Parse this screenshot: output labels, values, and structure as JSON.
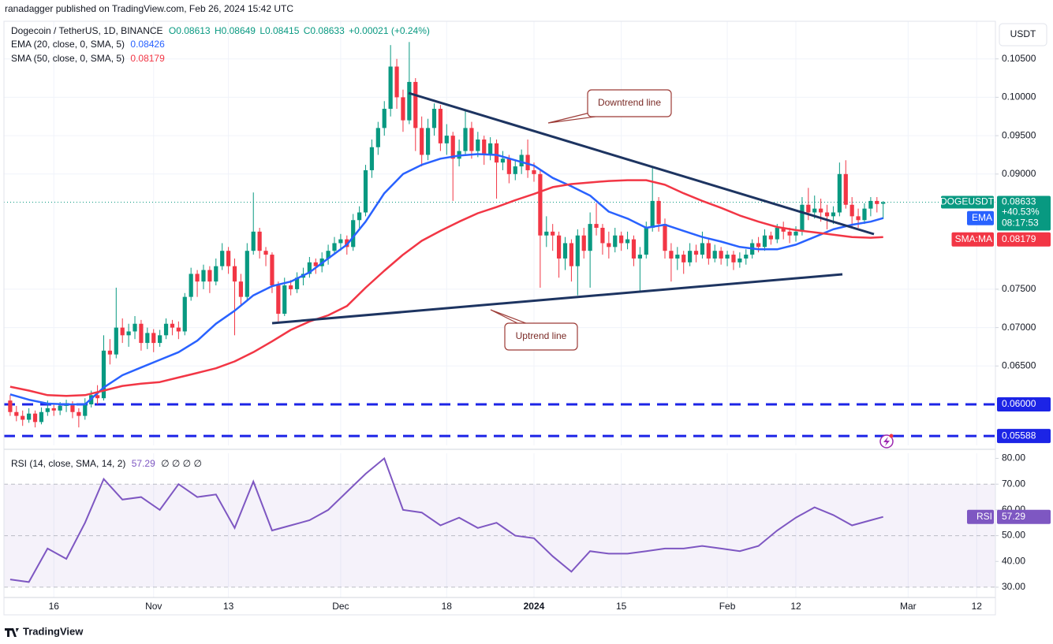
{
  "header": {
    "publisher": "ranadagger published on TradingView.com, Feb 26, 2024 15:42 UTC",
    "brand": "TradingView"
  },
  "chart_data": {
    "type": "candlestick",
    "symbol": "Dogecoin / TetherUS, 1D, BINANCE",
    "ohlc_legend": [
      "O0.08613",
      "H0.08649",
      "L0.08415",
      "C0.08633",
      "+0.00021 (+0.24%)"
    ],
    "currency": "USDT",
    "up_color": "#089981",
    "down_color": "#f23645",
    "xlim": [
      -8,
      151
    ],
    "xticks": [
      {
        "value": 0,
        "label": "16"
      },
      {
        "value": 16,
        "label": "Nov"
      },
      {
        "value": 28,
        "label": "13"
      },
      {
        "value": 46,
        "label": "Dec"
      },
      {
        "value": 63,
        "label": "18"
      },
      {
        "value": 77,
        "label": "2024"
      },
      {
        "value": 91,
        "label": "15"
      },
      {
        "value": 108,
        "label": "Feb"
      },
      {
        "value": 119,
        "label": "12"
      },
      {
        "value": 137,
        "label": "Mar"
      },
      {
        "value": 148,
        "label": "12"
      }
    ],
    "ylim": [
      0.05466,
      0.1099
    ],
    "yticks": [
      {
        "value": 0.105,
        "label": "0.10500"
      },
      {
        "value": 0.1,
        "label": "0.10000"
      },
      {
        "value": 0.095,
        "label": "0.09500"
      },
      {
        "value": 0.09,
        "label": "0.09000"
      },
      {
        "value": 0.075,
        "label": "0.07500"
      },
      {
        "value": 0.07,
        "label": "0.07000"
      },
      {
        "value": 0.065,
        "label": "0.06500"
      }
    ],
    "grid": true,
    "candles": [
      [
        -7,
        0.0605,
        0.0612,
        0.0585,
        0.059
      ],
      [
        -6,
        0.059,
        0.0598,
        0.0578,
        0.0585
      ],
      [
        -5,
        0.0585,
        0.0592,
        0.0572,
        0.058
      ],
      [
        -4,
        0.058,
        0.0595,
        0.0576,
        0.0588
      ],
      [
        -3,
        0.0588,
        0.0592,
        0.057,
        0.0577
      ],
      [
        -2,
        0.0577,
        0.0596,
        0.0574,
        0.059
      ],
      [
        -1,
        0.059,
        0.0605,
        0.0585,
        0.0595
      ],
      [
        0,
        0.0595,
        0.06,
        0.0585,
        0.0592
      ],
      [
        1,
        0.0592,
        0.0603,
        0.0586,
        0.0598
      ],
      [
        2,
        0.0598,
        0.0606,
        0.059,
        0.06
      ],
      [
        3,
        0.06,
        0.0604,
        0.0582,
        0.059
      ],
      [
        4,
        0.059,
        0.0595,
        0.057,
        0.0585
      ],
      [
        5,
        0.0585,
        0.0608,
        0.058,
        0.06
      ],
      [
        6,
        0.06,
        0.0618,
        0.0596,
        0.0612
      ],
      [
        7,
        0.0612,
        0.0625,
        0.06,
        0.0608
      ],
      [
        8,
        0.0608,
        0.069,
        0.0605,
        0.067
      ],
      [
        9,
        0.067,
        0.0685,
        0.0652,
        0.0665
      ],
      [
        10,
        0.0665,
        0.0752,
        0.066,
        0.07
      ],
      [
        11,
        0.07,
        0.0712,
        0.068,
        0.069
      ],
      [
        12,
        0.069,
        0.0705,
        0.0675,
        0.0695
      ],
      [
        13,
        0.0695,
        0.0715,
        0.0685,
        0.0705
      ],
      [
        14,
        0.0705,
        0.071,
        0.067,
        0.068
      ],
      [
        15,
        0.068,
        0.07,
        0.0672,
        0.0693
      ],
      [
        16,
        0.0693,
        0.0698,
        0.0668,
        0.068
      ],
      [
        17,
        0.068,
        0.0697,
        0.0675,
        0.069
      ],
      [
        18,
        0.069,
        0.0712,
        0.0685,
        0.0705
      ],
      [
        19,
        0.0705,
        0.071,
        0.069,
        0.07
      ],
      [
        20,
        0.07,
        0.0708,
        0.0685,
        0.0695
      ],
      [
        21,
        0.0695,
        0.0745,
        0.069,
        0.074
      ],
      [
        22,
        0.074,
        0.0778,
        0.0735,
        0.077
      ],
      [
        23,
        0.077,
        0.0775,
        0.074,
        0.076
      ],
      [
        24,
        0.076,
        0.0782,
        0.075,
        0.0775
      ],
      [
        25,
        0.0775,
        0.078,
        0.0745,
        0.076
      ],
      [
        26,
        0.076,
        0.079,
        0.0755,
        0.078
      ],
      [
        27,
        0.078,
        0.081,
        0.0775,
        0.08
      ],
      [
        28,
        0.08,
        0.0805,
        0.077,
        0.078
      ],
      [
        29,
        0.078,
        0.079,
        0.069,
        0.076
      ],
      [
        30,
        0.076,
        0.077,
        0.073,
        0.074
      ],
      [
        31,
        0.074,
        0.081,
        0.0735,
        0.08
      ],
      [
        32,
        0.08,
        0.0876,
        0.0795,
        0.0825
      ],
      [
        33,
        0.0825,
        0.083,
        0.079,
        0.08
      ],
      [
        34,
        0.08,
        0.0805,
        0.078,
        0.0795
      ],
      [
        35,
        0.0795,
        0.0798,
        0.0745,
        0.0755
      ],
      [
        36,
        0.0755,
        0.076,
        0.0708,
        0.0718
      ],
      [
        37,
        0.0718,
        0.0765,
        0.0715,
        0.0755
      ],
      [
        38,
        0.0755,
        0.0762,
        0.0742,
        0.075
      ],
      [
        39,
        0.075,
        0.0772,
        0.0745,
        0.0765
      ],
      [
        40,
        0.0765,
        0.0778,
        0.0755,
        0.077
      ],
      [
        41,
        0.077,
        0.0792,
        0.0765,
        0.0785
      ],
      [
        42,
        0.0785,
        0.079,
        0.077,
        0.078
      ],
      [
        43,
        0.078,
        0.0798,
        0.0772,
        0.079
      ],
      [
        44,
        0.079,
        0.0808,
        0.0782,
        0.08
      ],
      [
        45,
        0.08,
        0.0818,
        0.0795,
        0.081
      ],
      [
        46,
        0.081,
        0.0822,
        0.08,
        0.0815
      ],
      [
        47,
        0.0815,
        0.082,
        0.0795,
        0.0805
      ],
      [
        48,
        0.0805,
        0.0848,
        0.08,
        0.084
      ],
      [
        49,
        0.084,
        0.0858,
        0.083,
        0.085
      ],
      [
        50,
        0.085,
        0.0912,
        0.0845,
        0.0905
      ],
      [
        51,
        0.0905,
        0.0945,
        0.0895,
        0.0935
      ],
      [
        52,
        0.0935,
        0.0968,
        0.0925,
        0.096
      ],
      [
        53,
        0.096,
        0.0995,
        0.095,
        0.0985
      ],
      [
        54,
        0.0985,
        0.1068,
        0.0975,
        0.104
      ],
      [
        55,
        0.104,
        0.105,
        0.0985,
        0.1
      ],
      [
        56,
        0.1,
        0.101,
        0.0955,
        0.097
      ],
      [
        57,
        0.097,
        0.1072,
        0.0965,
        0.102
      ],
      [
        58,
        0.102,
        0.1025,
        0.093,
        0.096
      ],
      [
        59,
        0.096,
        0.0975,
        0.091,
        0.0925
      ],
      [
        60,
        0.0925,
        0.0972,
        0.0918,
        0.096
      ],
      [
        61,
        0.096,
        0.0992,
        0.095,
        0.0985
      ],
      [
        62,
        0.0985,
        0.099,
        0.093,
        0.094
      ],
      [
        63,
        0.094,
        0.0965,
        0.0925,
        0.095
      ],
      [
        64,
        0.095,
        0.0955,
        0.0865,
        0.092
      ],
      [
        65,
        0.092,
        0.0945,
        0.091,
        0.093
      ],
      [
        66,
        0.093,
        0.0982,
        0.0925,
        0.096
      ],
      [
        67,
        0.096,
        0.0968,
        0.092,
        0.093
      ],
      [
        68,
        0.093,
        0.0955,
        0.0922,
        0.0945
      ],
      [
        69,
        0.0945,
        0.095,
        0.0912,
        0.0925
      ],
      [
        70,
        0.0925,
        0.0948,
        0.0918,
        0.094
      ],
      [
        71,
        0.094,
        0.0945,
        0.0868,
        0.0915
      ],
      [
        72,
        0.0915,
        0.093,
        0.0905,
        0.092
      ],
      [
        73,
        0.092,
        0.0925,
        0.0888,
        0.09
      ],
      [
        74,
        0.09,
        0.0918,
        0.0892,
        0.091
      ],
      [
        75,
        0.091,
        0.0932,
        0.09,
        0.0925
      ],
      [
        76,
        0.0925,
        0.0945,
        0.0895,
        0.0905
      ],
      [
        77,
        0.0905,
        0.0915,
        0.089,
        0.09
      ],
      [
        78,
        0.09,
        0.0905,
        0.0752,
        0.082
      ],
      [
        79,
        0.082,
        0.0845,
        0.0805,
        0.0825
      ],
      [
        80,
        0.0825,
        0.0835,
        0.08,
        0.082
      ],
      [
        81,
        0.082,
        0.0825,
        0.0765,
        0.079
      ],
      [
        82,
        0.079,
        0.0818,
        0.0775,
        0.081
      ],
      [
        83,
        0.081,
        0.0815,
        0.076,
        0.078
      ],
      [
        84,
        0.078,
        0.0828,
        0.0742,
        0.082
      ],
      [
        85,
        0.082,
        0.083,
        0.079,
        0.08
      ],
      [
        86,
        0.08,
        0.085,
        0.0752,
        0.0835
      ],
      [
        87,
        0.0835,
        0.0862,
        0.082,
        0.083
      ],
      [
        88,
        0.083,
        0.0835,
        0.0795,
        0.081
      ],
      [
        89,
        0.081,
        0.0825,
        0.079,
        0.0805
      ],
      [
        90,
        0.0805,
        0.083,
        0.0798,
        0.082
      ],
      [
        91,
        0.082,
        0.0825,
        0.08,
        0.081
      ],
      [
        92,
        0.081,
        0.0825,
        0.0802,
        0.0815
      ],
      [
        93,
        0.0815,
        0.082,
        0.078,
        0.079
      ],
      [
        94,
        0.079,
        0.0805,
        0.0748,
        0.0795
      ],
      [
        95,
        0.0795,
        0.0838,
        0.079,
        0.083
      ],
      [
        96,
        0.083,
        0.0908,
        0.0825,
        0.0865
      ],
      [
        97,
        0.0865,
        0.087,
        0.0825,
        0.0835
      ],
      [
        98,
        0.0835,
        0.0842,
        0.079,
        0.08
      ],
      [
        99,
        0.08,
        0.081,
        0.076,
        0.079
      ],
      [
        100,
        0.079,
        0.0805,
        0.0775,
        0.0795
      ],
      [
        101,
        0.0795,
        0.08,
        0.077,
        0.0785
      ],
      [
        102,
        0.0785,
        0.081,
        0.078,
        0.08
      ],
      [
        103,
        0.08,
        0.0808,
        0.0785,
        0.0795
      ],
      [
        104,
        0.0795,
        0.0825,
        0.079,
        0.081
      ],
      [
        105,
        0.081,
        0.0815,
        0.0782,
        0.079
      ],
      [
        106,
        0.079,
        0.0808,
        0.0785,
        0.08
      ],
      [
        107,
        0.08,
        0.0805,
        0.0782,
        0.079
      ],
      [
        108,
        0.079,
        0.08,
        0.078,
        0.0795
      ],
      [
        109,
        0.0795,
        0.08,
        0.0775,
        0.0785
      ],
      [
        110,
        0.0785,
        0.0798,
        0.0778,
        0.079
      ],
      [
        111,
        0.079,
        0.0802,
        0.0782,
        0.0795
      ],
      [
        112,
        0.0795,
        0.0815,
        0.079,
        0.081
      ],
      [
        113,
        0.081,
        0.0818,
        0.0798,
        0.0805
      ],
      [
        114,
        0.0805,
        0.0828,
        0.08,
        0.082
      ],
      [
        115,
        0.082,
        0.0825,
        0.0808,
        0.0815
      ],
      [
        116,
        0.0815,
        0.0835,
        0.081,
        0.083
      ],
      [
        117,
        0.083,
        0.0838,
        0.0815,
        0.0825
      ],
      [
        118,
        0.0825,
        0.083,
        0.081,
        0.082
      ],
      [
        119,
        0.082,
        0.0832,
        0.0812,
        0.0825
      ],
      [
        120,
        0.0825,
        0.087,
        0.082,
        0.086
      ],
      [
        121,
        0.086,
        0.0882,
        0.084,
        0.085
      ],
      [
        122,
        0.085,
        0.0872,
        0.0842,
        0.0855
      ],
      [
        123,
        0.0855,
        0.0868,
        0.0838,
        0.085
      ],
      [
        124,
        0.085,
        0.086,
        0.0828,
        0.0845
      ],
      [
        125,
        0.0845,
        0.0858,
        0.0835,
        0.085
      ],
      [
        126,
        0.085,
        0.0915,
        0.0845,
        0.09
      ],
      [
        127,
        0.09,
        0.0918,
        0.0855,
        0.086
      ],
      [
        128,
        0.086,
        0.087,
        0.083,
        0.0845
      ],
      [
        129,
        0.0845,
        0.0855,
        0.083,
        0.084
      ],
      [
        130,
        0.084,
        0.0862,
        0.0835,
        0.0855
      ],
      [
        131,
        0.0855,
        0.087,
        0.0845,
        0.0865
      ],
      [
        132,
        0.0865,
        0.087,
        0.085,
        0.0861
      ],
      [
        133,
        0.08613,
        0.08649,
        0.08415,
        0.08633
      ]
    ],
    "lines": {
      "x": [
        -7,
        -4,
        -1,
        2,
        5,
        8,
        11,
        14,
        17,
        20,
        23,
        26,
        29,
        32,
        35,
        38,
        41,
        44,
        47,
        50,
        53,
        56,
        59,
        62,
        65,
        68,
        71,
        74,
        77,
        80,
        83,
        86,
        89,
        92,
        95,
        98,
        101,
        104,
        107,
        110,
        113,
        116,
        119,
        122,
        125,
        128,
        131,
        133
      ],
      "series": [
        {
          "name": "EMA (20, close, 0, SMA, 5)",
          "tag": "EMA",
          "color": "#2962ff",
          "last": 0.08426,
          "values": [
            0.0613,
            0.0606,
            0.0601,
            0.06,
            0.06,
            0.0622,
            0.0638,
            0.0648,
            0.0658,
            0.0668,
            0.0683,
            0.0705,
            0.0722,
            0.0742,
            0.0754,
            0.076,
            0.0772,
            0.079,
            0.0808,
            0.0838,
            0.0875,
            0.09,
            0.0912,
            0.092,
            0.0924,
            0.0926,
            0.0925,
            0.0918,
            0.0911,
            0.0895,
            0.0884,
            0.0872,
            0.0851,
            0.0842,
            0.083,
            0.0834,
            0.0826,
            0.0818,
            0.0812,
            0.0805,
            0.0802,
            0.0802,
            0.0808,
            0.0818,
            0.0828,
            0.0834,
            0.0838,
            0.08426
          ]
        },
        {
          "name": "SMA (50, close, 0, SMA, 5)",
          "tag": "SMA:MA",
          "color": "#f23645",
          "last": 0.08179,
          "values": [
            0.0623,
            0.0618,
            0.0612,
            0.0611,
            0.0612,
            0.0618,
            0.0624,
            0.0627,
            0.0629,
            0.0635,
            0.0641,
            0.0647,
            0.0656,
            0.0668,
            0.0682,
            0.0697,
            0.0708,
            0.0716,
            0.0728,
            0.0752,
            0.0774,
            0.0795,
            0.0813,
            0.0826,
            0.0838,
            0.0849,
            0.0857,
            0.0866,
            0.0874,
            0.0883,
            0.0887,
            0.0889,
            0.0891,
            0.0892,
            0.0892,
            0.0886,
            0.0875,
            0.0865,
            0.0856,
            0.0846,
            0.0838,
            0.0831,
            0.0827,
            0.0824,
            0.0821,
            0.0818,
            0.0817,
            0.08179
          ]
        }
      ]
    },
    "last_price": {
      "tag": "DOGEUSDT",
      "value": 0.08633,
      "change": "+40.53%",
      "countdown": "08:17:53"
    },
    "levels": [
      {
        "value": 0.06,
        "label": "0.06000"
      },
      {
        "value": 0.05588,
        "label": "0.05588"
      }
    ],
    "level_color": "#1c24e6",
    "annotations": [
      "Downtrend line",
      "Uptrend line"
    ],
    "rsi": {
      "name": "RSI (14, close, SMA, 14, 2)",
      "tag": "RSI",
      "last": 57.29,
      "extra": "∅ ∅ ∅ ∅",
      "color": "#7e57c2",
      "ylim": [
        26,
        82
      ],
      "yticks": [
        {
          "value": 80,
          "label": "80.00"
        },
        {
          "value": 70,
          "label": "70.00"
        },
        {
          "value": 60,
          "label": "60.00"
        },
        {
          "value": 50,
          "label": "50.00"
        },
        {
          "value": 40,
          "label": "40.00"
        },
        {
          "value": 30,
          "label": "30.00"
        }
      ],
      "band": [
        30,
        70
      ],
      "middle": 50,
      "values": [
        33,
        32,
        45,
        41,
        55,
        72,
        64,
        65,
        60,
        70,
        65,
        66,
        53,
        71,
        52,
        54,
        56,
        60,
        67,
        74,
        80,
        60,
        59,
        54,
        57,
        53,
        55,
        50,
        49,
        42,
        36,
        44,
        43,
        43,
        44,
        45,
        45,
        46,
        45,
        44,
        46,
        52,
        57,
        61,
        58,
        54,
        56,
        57.29
      ]
    }
  }
}
